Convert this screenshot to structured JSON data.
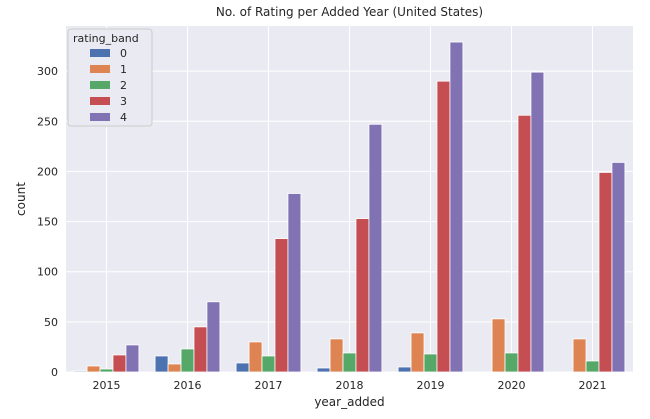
{
  "chart_data": {
    "type": "bar",
    "title": "No. of Rating per Added Year (United States)",
    "xlabel": "year_added",
    "ylabel": "count",
    "categories": [
      "2015",
      "2016",
      "2017",
      "2018",
      "2019",
      "2020",
      "2021"
    ],
    "ylim": [
      0,
      345
    ],
    "yticks": [
      0,
      50,
      100,
      150,
      200,
      250,
      300
    ],
    "grid": true,
    "legend": {
      "title": "rating_band",
      "placement": "top-left"
    },
    "series": [
      {
        "name": "0",
        "color": "#4c72b0",
        "values": [
          1,
          16,
          9,
          4,
          5,
          0,
          0
        ]
      },
      {
        "name": "1",
        "color": "#dd8452",
        "values": [
          6,
          8,
          30,
          33,
          39,
          53,
          33
        ]
      },
      {
        "name": "2",
        "color": "#55a868",
        "values": [
          3,
          23,
          16,
          19,
          18,
          19,
          11
        ]
      },
      {
        "name": "3",
        "color": "#c44e52",
        "values": [
          17,
          45,
          133,
          153,
          290,
          256,
          199
        ]
      },
      {
        "name": "4",
        "color": "#8172b3",
        "values": [
          27,
          70,
          178,
          247,
          329,
          299,
          209
        ]
      }
    ]
  }
}
